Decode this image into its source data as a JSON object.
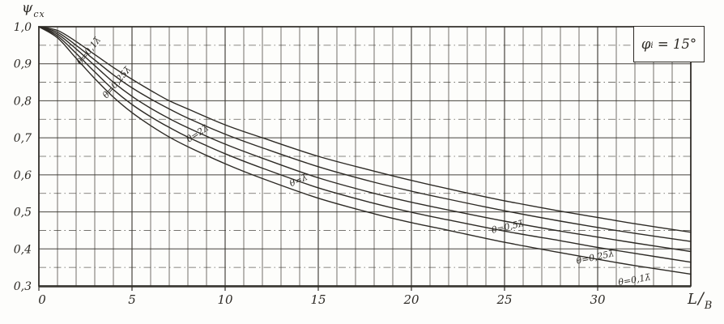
{
  "page": {
    "paper_color": "#fdfdfb",
    "ink_color": "#2d2a25",
    "grid_color": "#3c3933"
  },
  "y_axis": {
    "symbol": "ψ",
    "subscript": "cx",
    "tick_labels": [
      "1,0",
      "0,9",
      "0,8",
      "0,7",
      "0,6",
      "0,5",
      "0,4",
      "0,3"
    ],
    "tick_values": [
      1.0,
      0.9,
      0.8,
      0.7,
      0.6,
      0.5,
      0.4,
      0.3
    ]
  },
  "x_axis": {
    "label_numerator": "L",
    "label_separator": "/",
    "label_denominator": "B",
    "tick_labels": [
      "0",
      "5",
      "10",
      "15",
      "20",
      "25",
      "30"
    ],
    "tick_values": [
      0,
      5,
      10,
      15,
      20,
      25,
      30
    ]
  },
  "annotation_box": {
    "symbol": "φ",
    "subscript": "i",
    "value": "= 15°"
  },
  "chart_data": {
    "type": "line",
    "title": "",
    "xlabel": "L/B",
    "ylabel": "ψcx",
    "xlim": [
      0,
      35
    ],
    "ylim": [
      0.3,
      1.0
    ],
    "x_grid_step": 1,
    "y_grid_step": 0.05,
    "grid": "on",
    "legend": "none",
    "x": [
      0,
      1,
      2,
      3,
      4,
      5,
      6,
      7,
      8,
      10,
      12,
      15,
      18,
      20,
      22,
      25,
      28,
      30,
      32,
      35
    ],
    "series": [
      {
        "name": "θ=2λ̄",
        "values": [
          1.0,
          0.99,
          0.96,
          0.925,
          0.89,
          0.858,
          0.828,
          0.8,
          0.778,
          0.735,
          0.7,
          0.65,
          0.61,
          0.585,
          0.562,
          0.53,
          0.502,
          0.485,
          0.468,
          0.445
        ]
      },
      {
        "name": "θ=λ̄",
        "values": [
          1.0,
          0.985,
          0.95,
          0.91,
          0.87,
          0.835,
          0.805,
          0.778,
          0.753,
          0.71,
          0.673,
          0.622,
          0.58,
          0.556,
          0.534,
          0.503,
          0.475,
          0.458,
          0.442,
          0.42
        ]
      },
      {
        "name": "θ=0,5λ̄",
        "values": [
          1.0,
          0.98,
          0.94,
          0.895,
          0.85,
          0.812,
          0.78,
          0.752,
          0.727,
          0.683,
          0.645,
          0.592,
          0.55,
          0.526,
          0.505,
          0.475,
          0.448,
          0.432,
          0.416,
          0.393
        ]
      },
      {
        "name": "θ=0,25λ̄",
        "values": [
          1.0,
          0.975,
          0.928,
          0.878,
          0.83,
          0.79,
          0.757,
          0.728,
          0.702,
          0.657,
          0.618,
          0.565,
          0.523,
          0.499,
          0.478,
          0.448,
          0.422,
          0.404,
          0.388,
          0.364
        ]
      },
      {
        "name": "θ=0,1λ̄",
        "values": [
          1.0,
          0.97,
          0.915,
          0.86,
          0.81,
          0.768,
          0.733,
          0.702,
          0.676,
          0.63,
          0.59,
          0.537,
          0.495,
          0.471,
          0.45,
          0.418,
          0.39,
          0.372,
          0.355,
          0.332
        ]
      }
    ],
    "curve_labels": [
      {
        "text": "θ=0,1λ̄",
        "x": 2.8,
        "y": 0.93,
        "angle": -52
      },
      {
        "text": "θ=0,25λ̄",
        "x": 4.3,
        "y": 0.845,
        "angle": -50
      },
      {
        "text": "θ=2λ̄",
        "x": 8.6,
        "y": 0.705,
        "angle": -33
      },
      {
        "text": "θ=λ̄",
        "x": 14.0,
        "y": 0.578,
        "angle": -24
      },
      {
        "text": "θ=0,5λ̄",
        "x": 25.2,
        "y": 0.452,
        "angle": -13
      },
      {
        "text": "θ=0,25λ̄",
        "x": 29.9,
        "y": 0.37,
        "angle": -12
      },
      {
        "text": "θ=0,1λ̄",
        "x": 32.0,
        "y": 0.309,
        "angle": -10
      }
    ]
  }
}
